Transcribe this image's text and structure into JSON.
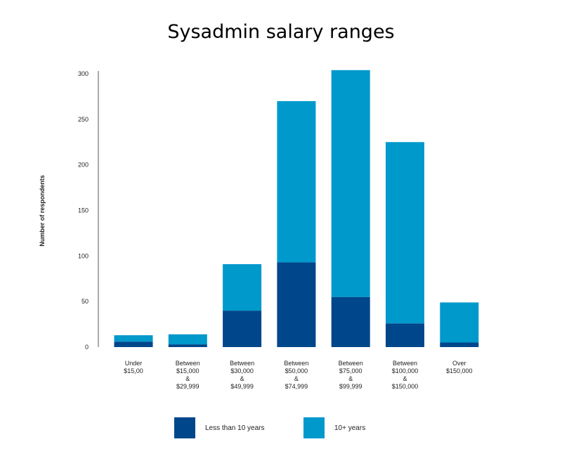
{
  "chart_data": {
    "type": "bar",
    "stacked": true,
    "title": "Sysadmin salary ranges",
    "ylabel": "Number of respondents",
    "xlabel": "",
    "ylim": [
      0,
      300
    ],
    "yticks": [
      0,
      50,
      100,
      150,
      200,
      250,
      300
    ],
    "categories": [
      [
        "Under",
        "$15,00"
      ],
      [
        "Between",
        "$15,000",
        "&",
        "$29,999"
      ],
      [
        "Between",
        "$30,000",
        "&",
        "$49,999"
      ],
      [
        "Between",
        "$50,000",
        "&",
        "$74,999"
      ],
      [
        "Between",
        "$75,000",
        "&",
        "$99,999"
      ],
      [
        "Between",
        "$100,000",
        "&",
        "$150,000"
      ],
      [
        "Over",
        "$150,000"
      ]
    ],
    "series": [
      {
        "name": "Less than 10 years",
        "color": "#00468b",
        "values": [
          6,
          3,
          40,
          93,
          55,
          26,
          5
        ]
      },
      {
        "name": "10+ years",
        "color": "#0099cc",
        "values": [
          7,
          11,
          51,
          177,
          249,
          199,
          44
        ]
      }
    ],
    "legend": "bottom"
  }
}
